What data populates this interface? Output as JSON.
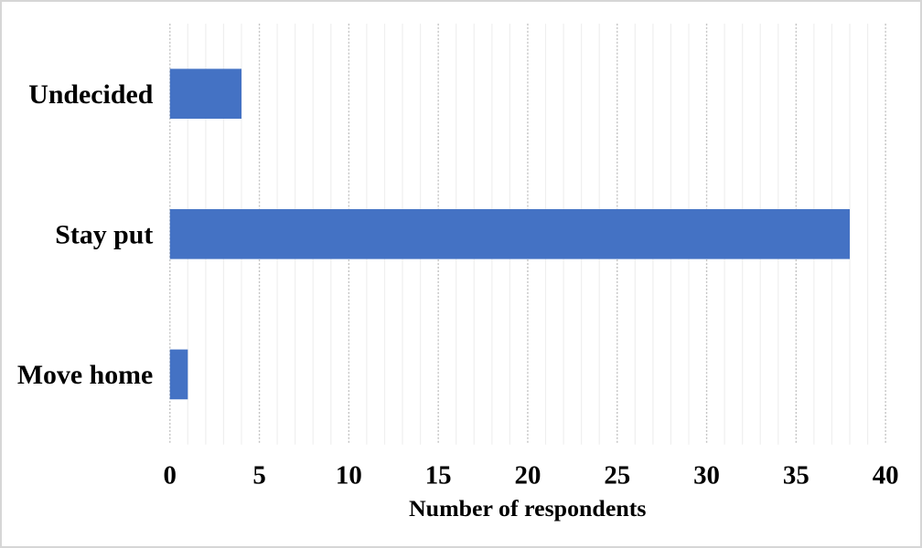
{
  "chart_data": {
    "type": "bar",
    "orientation": "horizontal",
    "categories": [
      "Undecided",
      "Stay put",
      "Move home"
    ],
    "values": [
      4,
      38,
      1
    ],
    "title": "",
    "xlabel": "Number of respondents",
    "ylabel": "",
    "xlim": [
      0,
      40
    ],
    "x_major_ticks": [
      0,
      5,
      10,
      15,
      20,
      25,
      30,
      35,
      40
    ],
    "x_minor_step": 1,
    "legend": "none",
    "grid": {
      "vertical_minor": true,
      "vertical_major": true,
      "minor_color": "#efefef",
      "major_color": "#c3c3c3"
    },
    "bar_color": "#4472C4"
  },
  "frame": {
    "background": "#ffffff",
    "border_color": "#d6d6d6"
  }
}
